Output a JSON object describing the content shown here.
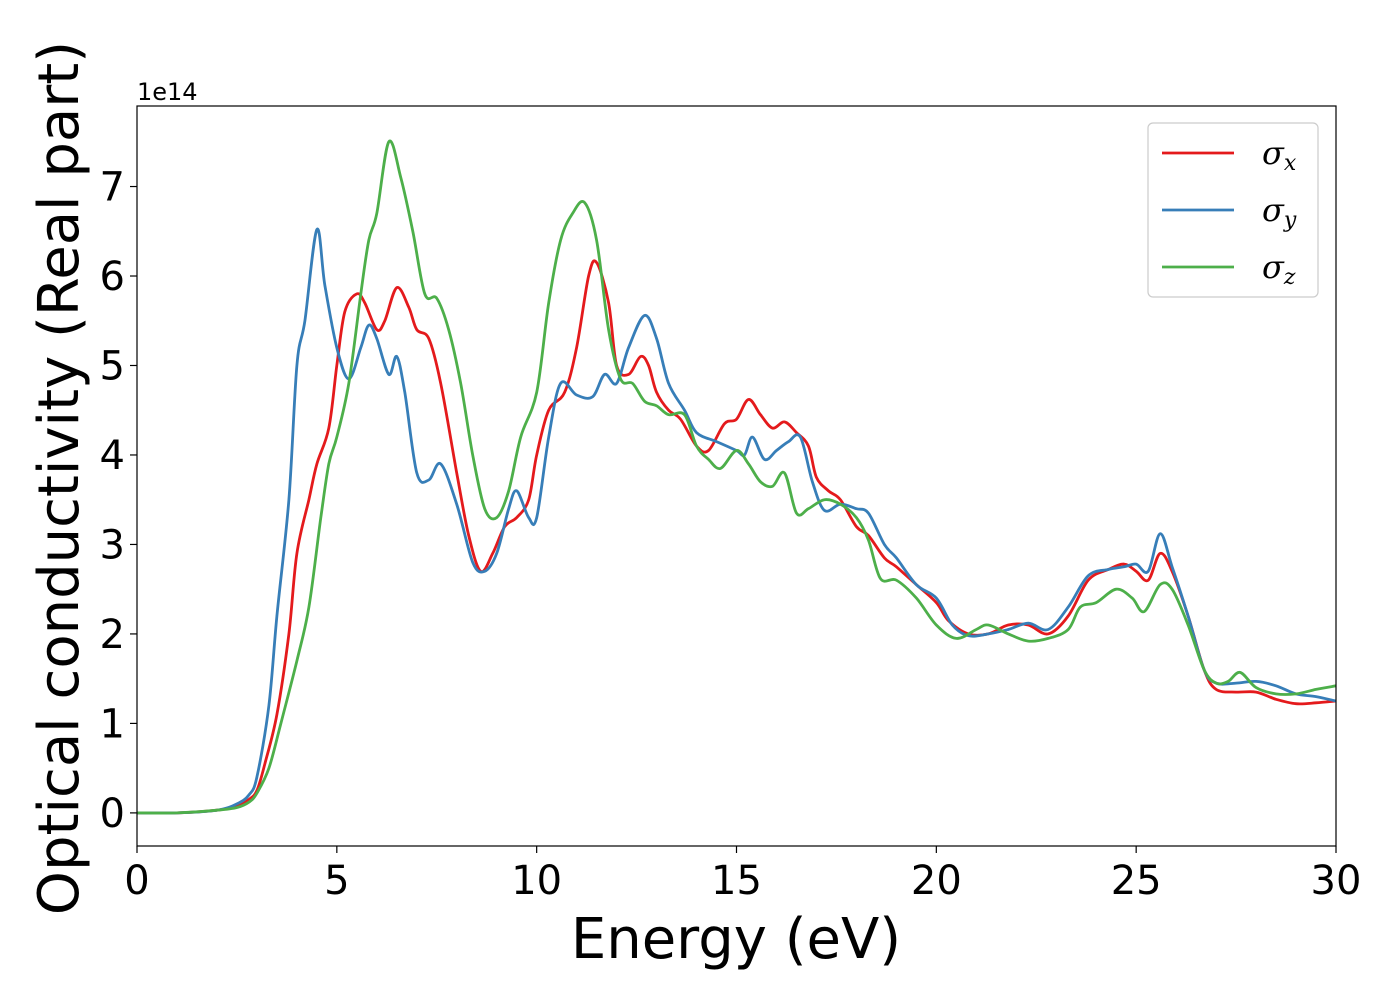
{
  "chart_data": {
    "type": "line",
    "xlabel": "Energy (eV)",
    "ylabel": "Optical conductivity (Real part)",
    "y_offset_label": "1e14",
    "y_multiplier": 100000000000000.0,
    "xlim": [
      0,
      30
    ],
    "ylim": [
      -0.37,
      7.9
    ],
    "x_ticks": [
      0,
      5,
      10,
      15,
      20,
      25,
      30
    ],
    "y_ticks": [
      0,
      1,
      2,
      3,
      4,
      5,
      6,
      7
    ],
    "grid": false,
    "legend_position": "top-right",
    "series": [
      {
        "name": "σx",
        "symbol": "σ",
        "subscript": "x",
        "color": "#e41a1c",
        "points": [
          [
            0,
            0
          ],
          [
            1,
            0
          ],
          [
            2,
            0.03
          ],
          [
            2.5,
            0.07
          ],
          [
            2.8,
            0.15
          ],
          [
            3,
            0.25
          ],
          [
            3.2,
            0.55
          ],
          [
            3.5,
            1.1
          ],
          [
            3.8,
            2.0
          ],
          [
            4,
            2.9
          ],
          [
            4.3,
            3.5
          ],
          [
            4.5,
            3.9
          ],
          [
            4.8,
            4.3
          ],
          [
            5,
            5.0
          ],
          [
            5.2,
            5.6
          ],
          [
            5.5,
            5.8
          ],
          [
            5.7,
            5.7
          ],
          [
            6,
            5.4
          ],
          [
            6.2,
            5.5
          ],
          [
            6.5,
            5.87
          ],
          [
            6.8,
            5.65
          ],
          [
            7,
            5.4
          ],
          [
            7.3,
            5.3
          ],
          [
            7.6,
            4.8
          ],
          [
            8,
            3.8
          ],
          [
            8.3,
            3.1
          ],
          [
            8.6,
            2.7
          ],
          [
            8.9,
            2.9
          ],
          [
            9.2,
            3.2
          ],
          [
            9.5,
            3.3
          ],
          [
            9.8,
            3.5
          ],
          [
            10,
            4.0
          ],
          [
            10.3,
            4.5
          ],
          [
            10.7,
            4.7
          ],
          [
            11,
            5.2
          ],
          [
            11.3,
            6.0
          ],
          [
            11.5,
            6.15
          ],
          [
            11.8,
            5.7
          ],
          [
            12,
            5.0
          ],
          [
            12.3,
            4.9
          ],
          [
            12.6,
            5.1
          ],
          [
            12.8,
            5.0
          ],
          [
            13,
            4.7
          ],
          [
            13.3,
            4.5
          ],
          [
            13.6,
            4.4
          ],
          [
            14,
            4.1
          ],
          [
            14.3,
            4.05
          ],
          [
            14.7,
            4.35
          ],
          [
            15,
            4.4
          ],
          [
            15.3,
            4.62
          ],
          [
            15.6,
            4.45
          ],
          [
            15.9,
            4.3
          ],
          [
            16.2,
            4.37
          ],
          [
            16.5,
            4.25
          ],
          [
            16.8,
            4.1
          ],
          [
            17,
            3.75
          ],
          [
            17.3,
            3.6
          ],
          [
            17.6,
            3.5
          ],
          [
            18,
            3.2
          ],
          [
            18.3,
            3.1
          ],
          [
            18.7,
            2.85
          ],
          [
            19,
            2.75
          ],
          [
            19.5,
            2.55
          ],
          [
            20,
            2.35
          ],
          [
            20.3,
            2.15
          ],
          [
            20.8,
            2.0
          ],
          [
            21.3,
            2.0
          ],
          [
            21.8,
            2.1
          ],
          [
            22.3,
            2.1
          ],
          [
            22.8,
            2.0
          ],
          [
            23.3,
            2.2
          ],
          [
            23.8,
            2.6
          ],
          [
            24.3,
            2.72
          ],
          [
            24.7,
            2.78
          ],
          [
            25,
            2.7
          ],
          [
            25.3,
            2.6
          ],
          [
            25.6,
            2.9
          ],
          [
            25.9,
            2.7
          ],
          [
            26.3,
            2.2
          ],
          [
            26.7,
            1.6
          ],
          [
            27,
            1.38
          ],
          [
            27.5,
            1.35
          ],
          [
            28,
            1.35
          ],
          [
            28.5,
            1.27
          ],
          [
            29,
            1.22
          ],
          [
            29.5,
            1.23
          ],
          [
            30,
            1.25
          ]
        ]
      },
      {
        "name": "σy",
        "symbol": "σ",
        "subscript": "y",
        "color": "#377eb8",
        "points": [
          [
            0,
            0
          ],
          [
            1,
            0
          ],
          [
            2,
            0.03
          ],
          [
            2.5,
            0.1
          ],
          [
            2.8,
            0.2
          ],
          [
            3,
            0.4
          ],
          [
            3.3,
            1.2
          ],
          [
            3.5,
            2.2
          ],
          [
            3.8,
            3.5
          ],
          [
            4,
            5.0
          ],
          [
            4.2,
            5.5
          ],
          [
            4.5,
            6.52
          ],
          [
            4.7,
            5.9
          ],
          [
            5,
            5.2
          ],
          [
            5.3,
            4.85
          ],
          [
            5.6,
            5.2
          ],
          [
            5.8,
            5.45
          ],
          [
            6,
            5.3
          ],
          [
            6.3,
            4.9
          ],
          [
            6.5,
            5.1
          ],
          [
            6.7,
            4.7
          ],
          [
            7,
            3.8
          ],
          [
            7.3,
            3.72
          ],
          [
            7.6,
            3.9
          ],
          [
            8,
            3.45
          ],
          [
            8.4,
            2.8
          ],
          [
            8.7,
            2.7
          ],
          [
            9,
            2.9
          ],
          [
            9.3,
            3.4
          ],
          [
            9.5,
            3.6
          ],
          [
            9.8,
            3.3
          ],
          [
            10,
            3.3
          ],
          [
            10.3,
            4.2
          ],
          [
            10.6,
            4.8
          ],
          [
            11,
            4.67
          ],
          [
            11.4,
            4.65
          ],
          [
            11.7,
            4.9
          ],
          [
            12,
            4.8
          ],
          [
            12.3,
            5.2
          ],
          [
            12.7,
            5.56
          ],
          [
            13,
            5.3
          ],
          [
            13.3,
            4.8
          ],
          [
            13.7,
            4.5
          ],
          [
            14,
            4.25
          ],
          [
            14.5,
            4.15
          ],
          [
            15,
            4.05
          ],
          [
            15.2,
            4.0
          ],
          [
            15.4,
            4.2
          ],
          [
            15.7,
            3.95
          ],
          [
            16,
            4.05
          ],
          [
            16.3,
            4.15
          ],
          [
            16.6,
            4.2
          ],
          [
            16.9,
            3.7
          ],
          [
            17.2,
            3.38
          ],
          [
            17.6,
            3.45
          ],
          [
            18,
            3.4
          ],
          [
            18.3,
            3.35
          ],
          [
            18.7,
            3.0
          ],
          [
            19,
            2.85
          ],
          [
            19.5,
            2.55
          ],
          [
            20,
            2.4
          ],
          [
            20.4,
            2.1
          ],
          [
            20.8,
            1.98
          ],
          [
            21.3,
            2.0
          ],
          [
            21.8,
            2.05
          ],
          [
            22.3,
            2.12
          ],
          [
            22.8,
            2.05
          ],
          [
            23.3,
            2.3
          ],
          [
            23.8,
            2.65
          ],
          [
            24.3,
            2.72
          ],
          [
            24.7,
            2.75
          ],
          [
            25,
            2.78
          ],
          [
            25.3,
            2.7
          ],
          [
            25.6,
            3.12
          ],
          [
            25.9,
            2.75
          ],
          [
            26.3,
            2.2
          ],
          [
            26.7,
            1.6
          ],
          [
            27,
            1.45
          ],
          [
            27.5,
            1.45
          ],
          [
            28,
            1.47
          ],
          [
            28.5,
            1.42
          ],
          [
            29,
            1.33
          ],
          [
            29.5,
            1.3
          ],
          [
            30,
            1.25
          ]
        ]
      },
      {
        "name": "σz",
        "symbol": "σ",
        "subscript": "z",
        "color": "#4daf4a",
        "points": [
          [
            0,
            0
          ],
          [
            1,
            0
          ],
          [
            2,
            0.03
          ],
          [
            2.5,
            0.06
          ],
          [
            2.8,
            0.12
          ],
          [
            3,
            0.22
          ],
          [
            3.3,
            0.5
          ],
          [
            3.6,
            1.0
          ],
          [
            4,
            1.7
          ],
          [
            4.3,
            2.3
          ],
          [
            4.6,
            3.3
          ],
          [
            4.8,
            3.9
          ],
          [
            5,
            4.2
          ],
          [
            5.3,
            4.8
          ],
          [
            5.6,
            5.8
          ],
          [
            5.8,
            6.4
          ],
          [
            6,
            6.7
          ],
          [
            6.3,
            7.5
          ],
          [
            6.6,
            7.1
          ],
          [
            6.9,
            6.5
          ],
          [
            7.2,
            5.8
          ],
          [
            7.5,
            5.75
          ],
          [
            7.8,
            5.4
          ],
          [
            8.1,
            4.8
          ],
          [
            8.4,
            4.0
          ],
          [
            8.7,
            3.4
          ],
          [
            9,
            3.3
          ],
          [
            9.3,
            3.6
          ],
          [
            9.6,
            4.2
          ],
          [
            10,
            4.7
          ],
          [
            10.3,
            5.7
          ],
          [
            10.6,
            6.4
          ],
          [
            10.9,
            6.7
          ],
          [
            11.2,
            6.82
          ],
          [
            11.5,
            6.4
          ],
          [
            11.8,
            5.4
          ],
          [
            12.1,
            4.85
          ],
          [
            12.4,
            4.8
          ],
          [
            12.7,
            4.6
          ],
          [
            13,
            4.55
          ],
          [
            13.3,
            4.45
          ],
          [
            13.7,
            4.45
          ],
          [
            14,
            4.1
          ],
          [
            14.3,
            3.95
          ],
          [
            14.6,
            3.85
          ],
          [
            15,
            4.05
          ],
          [
            15.3,
            3.9
          ],
          [
            15.6,
            3.7
          ],
          [
            15.9,
            3.65
          ],
          [
            16.2,
            3.8
          ],
          [
            16.5,
            3.35
          ],
          [
            16.8,
            3.4
          ],
          [
            17.2,
            3.5
          ],
          [
            17.6,
            3.45
          ],
          [
            18,
            3.3
          ],
          [
            18.3,
            3.05
          ],
          [
            18.6,
            2.62
          ],
          [
            19,
            2.6
          ],
          [
            19.5,
            2.4
          ],
          [
            20,
            2.1
          ],
          [
            20.5,
            1.95
          ],
          [
            21,
            2.05
          ],
          [
            21.3,
            2.1
          ],
          [
            21.8,
            2.0
          ],
          [
            22.3,
            1.92
          ],
          [
            22.8,
            1.95
          ],
          [
            23.3,
            2.05
          ],
          [
            23.6,
            2.3
          ],
          [
            24,
            2.35
          ],
          [
            24.5,
            2.5
          ],
          [
            24.9,
            2.4
          ],
          [
            25.2,
            2.25
          ],
          [
            25.6,
            2.55
          ],
          [
            25.9,
            2.5
          ],
          [
            26.3,
            2.1
          ],
          [
            26.7,
            1.6
          ],
          [
            27,
            1.45
          ],
          [
            27.3,
            1.47
          ],
          [
            27.6,
            1.57
          ],
          [
            28,
            1.4
          ],
          [
            28.5,
            1.33
          ],
          [
            29,
            1.33
          ],
          [
            29.5,
            1.38
          ],
          [
            30,
            1.42
          ]
        ]
      }
    ]
  }
}
